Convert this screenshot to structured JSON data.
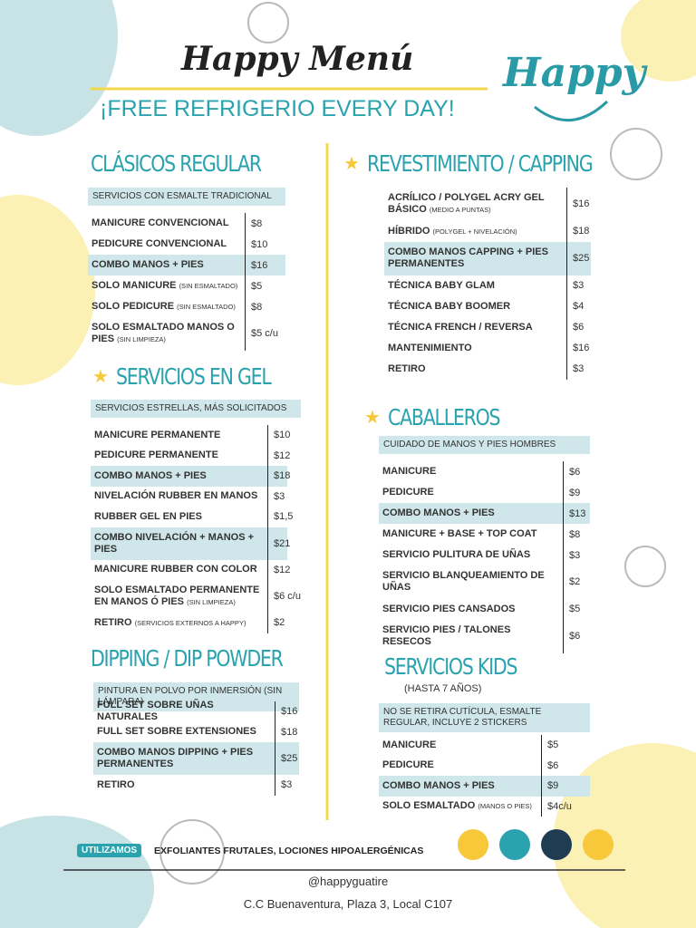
{
  "header": {
    "title": "Happy Menú",
    "subtitle": "¡FREE REFRIGERIO EVERY DAY!",
    "logo": "Happy"
  },
  "sections": [
    {
      "title": "CLÁSICOS REGULAR",
      "note": "SERVICIOS CON ESMALTE TRADICIONAL",
      "items": [
        {
          "name": "MANICURE CONVENCIONAL",
          "price": "$8"
        },
        {
          "name": "PEDICURE CONVENCIONAL",
          "price": "$10"
        },
        {
          "name": "COMBO MANOS + PIES",
          "price": "$16",
          "highlight": true
        },
        {
          "name": "SOLO MANICURE",
          "detail": "(SIN ESMALTADO)",
          "price": "$5"
        },
        {
          "name": "SOLO PEDICURE",
          "detail": "(SIN ESMALTADO)",
          "price": "$8"
        },
        {
          "name": "SOLO ESMALTADO MANOS O PIES",
          "detail": "(SIN LIMPIEZA)",
          "price": "$5 c/u"
        }
      ]
    },
    {
      "title": "SERVICIOS EN GEL",
      "star": true,
      "note": "SERVICIOS ESTRELLAS, MÁS SOLICITADOS",
      "items": [
        {
          "name": "MANICURE PERMANENTE",
          "price": "$10"
        },
        {
          "name": "PEDICURE PERMANENTE",
          "price": "$12"
        },
        {
          "name": "COMBO MANOS + PIES",
          "price": "$18",
          "highlight": true
        },
        {
          "name": "NIVELACIÓN RUBBER EN MANOS",
          "price": "$3"
        },
        {
          "name": "RUBBER GEL EN PIES",
          "price": "$1,5"
        },
        {
          "name": "COMBO NIVELACIÓN + MANOS + PIES",
          "price": "$21",
          "highlight": true
        },
        {
          "name": "MANICURE RUBBER CON COLOR",
          "price": "$12"
        },
        {
          "name": "SOLO ESMALTADO PERMANENTE EN MANOS Ó PIES",
          "detail": "(SIN LIMPIEZA)",
          "price": "$6 c/u"
        },
        {
          "name": "RETIRO",
          "detail": "(SERVICIOS EXTERNOS A HAPPY)",
          "price": "$2"
        }
      ]
    },
    {
      "title": "DIPPING / DIP POWDER",
      "note": "PINTURA EN POLVO POR INMERSIÓN (SIN LÁMPARA)",
      "items": [
        {
          "name": "FULL SET SOBRE UÑAS NATURALES",
          "price": "$16"
        },
        {
          "name": "FULL SET SOBRE EXTENSIONES",
          "price": "$18"
        },
        {
          "name": "COMBO MANOS DIPPING + PIES PERMANENTES",
          "price": "$25",
          "highlight": true
        },
        {
          "name": "RETIRO",
          "price": "$3"
        }
      ]
    },
    {
      "title": "REVESTIMIENTO / CAPPING",
      "star": true,
      "items": [
        {
          "name": "ACRÍLICO / POLYGEL ACRY GEL BÁSICO",
          "detail": "(MEDIO A PUNTAS)",
          "price": "$16"
        },
        {
          "name": "HÍBRIDO",
          "detail": "(POLYGEL + NIVELACIÓN)",
          "price": "$18"
        },
        {
          "name": "COMBO MANOS CAPPING + PIES PERMANENTES",
          "price": "$25",
          "highlight": true
        },
        {
          "name": "TÉCNICA BABY GLAM",
          "price": "$3"
        },
        {
          "name": "TÉCNICA BABY BOOMER",
          "price": "$4"
        },
        {
          "name": "TÉCNICA FRENCH / REVERSA",
          "price": "$6"
        },
        {
          "name": "MANTENIMIENTO",
          "price": "$16"
        },
        {
          "name": "RETIRO",
          "price": "$3"
        }
      ]
    },
    {
      "title": "CABALLEROS",
      "star": true,
      "note": "CUIDADO DE MANOS Y PIES HOMBRES",
      "items": [
        {
          "name": "MANICURE",
          "price": "$6"
        },
        {
          "name": "PEDICURE",
          "price": "$9"
        },
        {
          "name": "COMBO MANOS + PIES",
          "price": "$13",
          "highlight": true
        },
        {
          "name": "MANICURE + BASE + TOP COAT",
          "price": "$8"
        },
        {
          "name": "SERVICIO PULITURA DE UÑAS",
          "price": "$3"
        },
        {
          "name": "SERVICIO BLANQUEAMIENTO DE UÑAS",
          "price": "$2"
        },
        {
          "name": "SERVICIO PIES CANSADOS",
          "price": "$5"
        },
        {
          "name": "SERVICIO PIES / TALONES RESECOS",
          "price": "$6"
        }
      ]
    },
    {
      "title": "SERVICIOS KIDS",
      "subtitle": "(HASTA 7 AÑOS)",
      "note": "NO SE RETIRA CUTÍCULA, ESMALTE REGULAR, INCLUYE 2 STICKERS",
      "items": [
        {
          "name": "MANICURE",
          "price": "$5"
        },
        {
          "name": "PEDICURE",
          "price": "$6"
        },
        {
          "name": "COMBO MANOS + PIES",
          "price": "$9",
          "highlight": true
        },
        {
          "name": "SOLO ESMALTADO",
          "detail": "(MANOS O PIES)",
          "price": "$4c/u"
        }
      ]
    }
  ],
  "footer": {
    "tag": "UTILIZAMOS",
    "products": "EXFOLIANTES FRUTALES, LOCIONES HIPOALERGÉNICAS",
    "handle": "@happyguatire",
    "address": "C.C Buenaventura, Plaza 3, Local C107"
  }
}
